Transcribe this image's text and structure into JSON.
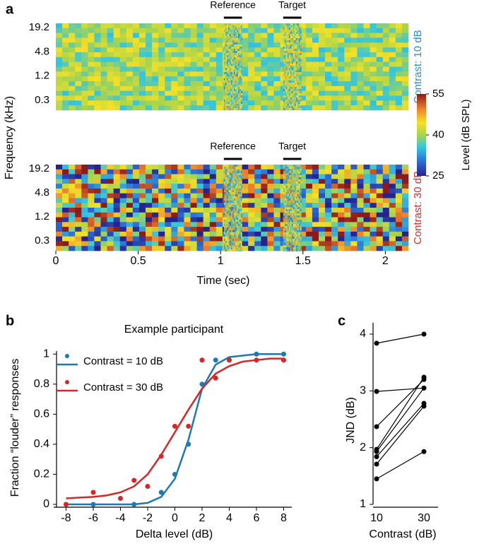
{
  "chart_data": [
    {
      "type": "spectrogram",
      "panel_label": "a",
      "ylabel": "Frequency (kHz)",
      "xlabel": "Time (sec)",
      "xlim": [
        0,
        2.14
      ],
      "xticks": [
        0,
        0.5,
        1,
        1.5,
        2
      ],
      "y_categories": [
        "19.2",
        "4.8",
        "1.2",
        "0.3"
      ],
      "reference_label": "Reference",
      "target_label": "Target",
      "reference_time": [
        1.02,
        1.13
      ],
      "target_time": [
        1.38,
        1.49
      ],
      "panels": [
        {
          "label": "Contrast: 10 dB",
          "color": "#2e8ccf"
        },
        {
          "label": "Contrast: 30 dB",
          "color": "#d22e2e"
        }
      ],
      "colorbar": {
        "label": "Level (dB SPL)",
        "lim": [
          25,
          55
        ],
        "ticks": [
          25,
          40,
          55
        ]
      }
    },
    {
      "type": "scatter",
      "panel_label": "b",
      "title": "Example participant",
      "xlabel": "Delta level (dB)",
      "ylabel": "Fraction “louder” responses",
      "xlim": [
        -8.7,
        8.6
      ],
      "ylim": [
        0,
        1.02
      ],
      "xticks": [
        -8,
        -6,
        -4,
        -2,
        0,
        2,
        4,
        6,
        8
      ],
      "yticks": [
        0,
        0.2,
        0.4,
        0.6,
        0.8,
        1
      ],
      "fit_x": [
        -8,
        -7,
        -6,
        -5,
        -4,
        -3,
        -2,
        -1,
        0,
        1,
        2,
        3,
        4,
        5,
        6,
        7,
        8
      ],
      "series": [
        {
          "name": "Contrast = 10 dB",
          "color": "#1f77b4",
          "x": [
            -6,
            -3,
            -1,
            0,
            1,
            2,
            3,
            4,
            6,
            8
          ],
          "values": [
            0,
            0,
            0.08,
            0.2,
            0.4,
            0.8,
            0.96,
            0.96,
            1,
            1
          ],
          "fit": [
            0,
            0,
            0,
            0,
            0,
            0,
            0.01,
            0.05,
            0.17,
            0.43,
            0.77,
            0.93,
            0.98,
            0.99,
            1,
            1,
            1
          ]
        },
        {
          "name": "Contrast = 30 dB",
          "color": "#d62728",
          "x": [
            -8,
            -6,
            -4,
            -3,
            -2,
            -1,
            0,
            1,
            2,
            3,
            4,
            6,
            8
          ],
          "values": [
            0,
            0.08,
            0.04,
            0.16,
            0.12,
            0.32,
            0.52,
            0.52,
            0.96,
            0.84,
            0.96,
            0.96,
            0.96
          ],
          "fit": [
            0.04,
            0.045,
            0.05,
            0.06,
            0.08,
            0.12,
            0.2,
            0.33,
            0.48,
            0.63,
            0.77,
            0.87,
            0.92,
            0.95,
            0.96,
            0.97,
            0.97
          ]
        }
      ]
    },
    {
      "type": "paired",
      "panel_label": "c",
      "xlabel": "Contrast (dB)",
      "ylabel": "JND (dB)",
      "categories": [
        "10",
        "30"
      ],
      "ylim": [
        1,
        4.2
      ],
      "yticks": [
        1,
        2,
        3,
        4
      ],
      "color": "#000000",
      "series": [
        {
          "values": [
            3.84,
            4.0
          ]
        },
        {
          "values": [
            2.99,
            3.05
          ]
        },
        {
          "values": [
            2.37,
            3.2
          ]
        },
        {
          "values": [
            1.97,
            3.24
          ]
        },
        {
          "values": [
            1.93,
            3.05
          ]
        },
        {
          "values": [
            1.84,
            2.78
          ]
        },
        {
          "values": [
            1.71,
            2.73
          ]
        },
        {
          "values": [
            1.45,
            1.93
          ]
        }
      ]
    }
  ]
}
